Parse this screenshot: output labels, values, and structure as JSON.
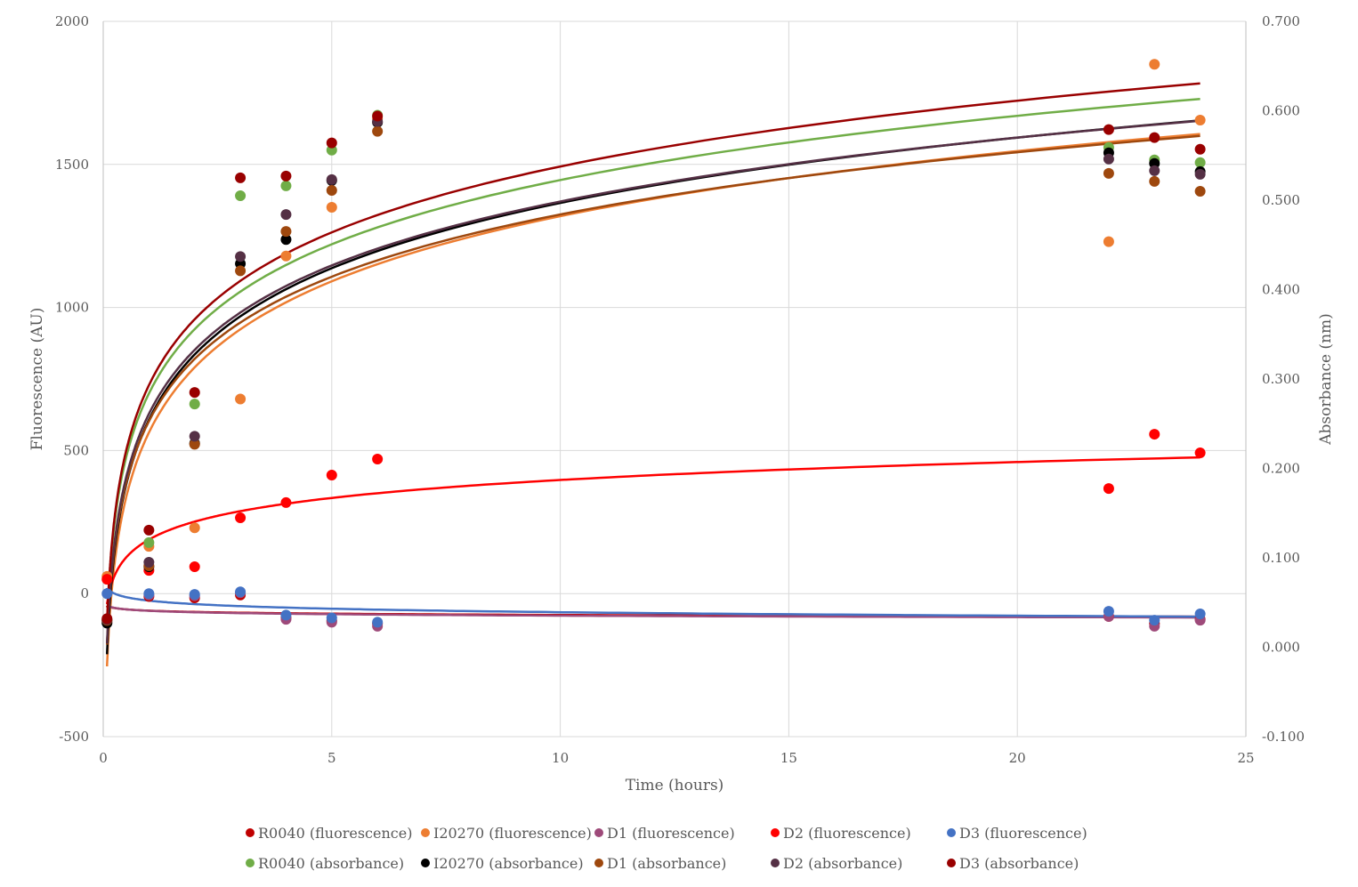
{
  "chart_data": {
    "type": "scatter",
    "title": "",
    "xlabel": "Time (hours)",
    "ylabel": "Fluorescence (AU)",
    "y2label": "Absorbance (nm)",
    "xlim": [
      0,
      25
    ],
    "ylim": [
      -500,
      2000
    ],
    "y2lim": [
      -0.1,
      0.7
    ],
    "xticks": [
      "0",
      "5",
      "10",
      "15",
      "20",
      "25"
    ],
    "yticks": [
      "-500",
      "0",
      "500",
      "1000",
      "1500",
      "2000"
    ],
    "y2ticks": [
      "-0.100",
      "0.000",
      "0.100",
      "0.200",
      "0.300",
      "0.400",
      "0.500",
      "0.600",
      "0.700"
    ],
    "grid": true,
    "legend_position": "bottom",
    "trendline": "logarithmic",
    "x": [
      0.083,
      1,
      2,
      3,
      4,
      5,
      6,
      22,
      23,
      24
    ],
    "series": [
      {
        "name": "R0040 (fluorescence)",
        "axis": "primary",
        "color": "#C00000",
        "values": [
          -95,
          -10,
          -15,
          -5,
          -85,
          -95,
          -105,
          -80,
          -105,
          -90
        ]
      },
      {
        "name": "I20270 (fluorescence)",
        "axis": "primary",
        "color": "#ED7D31",
        "values": [
          60,
          165,
          230,
          680,
          1180,
          1350,
          1660,
          1230,
          1850,
          1655
        ]
      },
      {
        "name": "D1 (fluorescence)",
        "axis": "primary",
        "color": "#9E4A7A",
        "values": [
          -100,
          -5,
          -8,
          3,
          -90,
          -100,
          -114,
          -80,
          -114,
          -93
        ]
      },
      {
        "name": "D2 (fluorescence)",
        "axis": "primary",
        "color": "#FF0000",
        "values": [
          50,
          81,
          94,
          265,
          318,
          414,
          470,
          367,
          557,
          492
        ]
      },
      {
        "name": "D3 (fluorescence)",
        "axis": "primary",
        "color": "#4472C4",
        "values": [
          0,
          0,
          -3,
          6,
          -75,
          -85,
          -100,
          -62,
          -93,
          -71
        ]
      },
      {
        "name": "R0040 (absorbance)",
        "axis": "secondary",
        "color": "#70AD47",
        "values": [
          0.03,
          0.117,
          0.272,
          0.505,
          0.516,
          0.556,
          0.595,
          0.559,
          0.545,
          0.542
        ]
      },
      {
        "name": "I20270 (absorbance)",
        "axis": "secondary",
        "color": "#000000",
        "values": [
          0.027,
          0.09,
          0.228,
          0.429,
          0.456,
          0.522,
          0.587,
          0.553,
          0.541,
          0.532
        ]
      },
      {
        "name": "D1 (absorbance)",
        "axis": "secondary",
        "color": "#9E480E",
        "values": [
          0.03,
          0.091,
          0.227,
          0.421,
          0.465,
          0.511,
          0.577,
          0.53,
          0.521,
          0.51
        ]
      },
      {
        "name": "D2 (absorbance)",
        "axis": "secondary",
        "color": "#553045",
        "values": [
          0.031,
          0.095,
          0.236,
          0.437,
          0.484,
          0.523,
          0.588,
          0.546,
          0.533,
          0.529
        ]
      },
      {
        "name": "D3 (absorbance)",
        "axis": "secondary",
        "color": "#990000",
        "values": [
          0.032,
          0.131,
          0.285,
          0.525,
          0.527,
          0.564,
          0.594,
          0.579,
          0.57,
          0.557
        ]
      }
    ]
  }
}
